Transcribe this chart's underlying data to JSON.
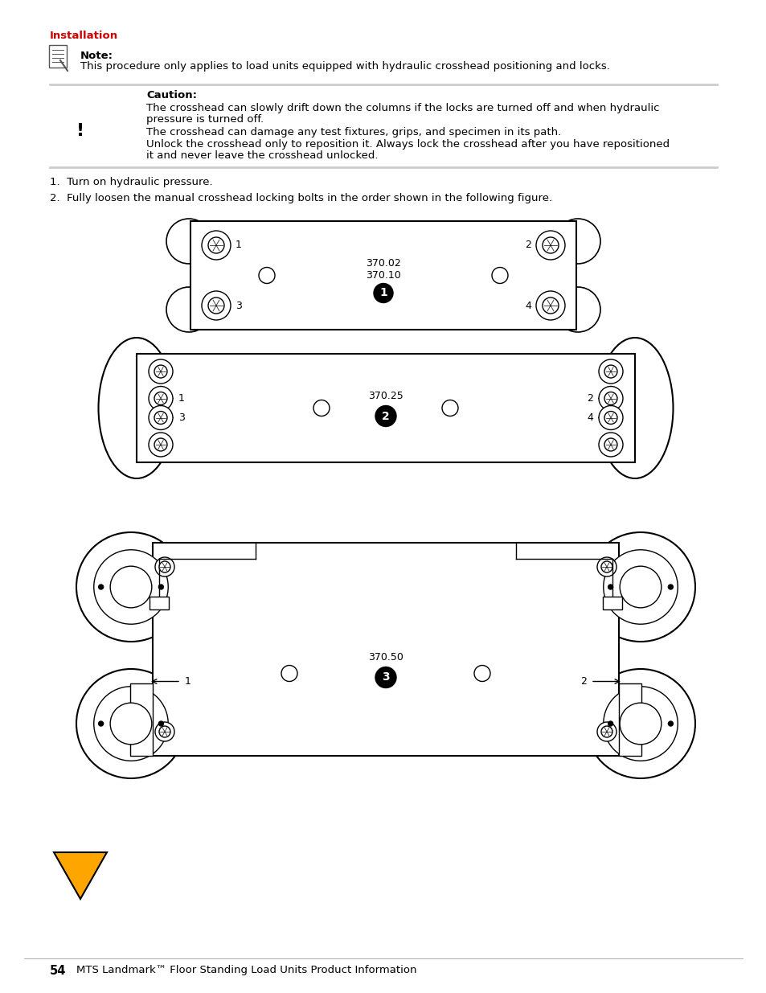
{
  "page_bg": "#ffffff",
  "header_text": "Installation",
  "header_color": "#cc0000",
  "note_bold": "Note:",
  "note_text": "This procedure only applies to load units equipped with hydraulic crosshead positioning and locks.",
  "caution_bold": "Caution:",
  "caution_line1": "The crosshead can slowly drift down the columns if the locks are turned off and when hydraulic",
  "caution_line2": "pressure is turned off.",
  "caution_line3": "The crosshead can damage any test fixtures, grips, and specimen in its path.",
  "caution_line4": "Unlock the crosshead only to reposition it. Always lock the crosshead after you have repositioned",
  "caution_line5": "it and never leave the crosshead unlocked.",
  "step1": "1.  Turn on hydraulic pressure.",
  "step2": "2.  Fully loosen the manual crosshead locking bolts in the order shown in the following figure.",
  "footer_num": "54",
  "footer_text": "MTS Landmark™ Floor Standing Load Units Product Information",
  "divider_color": "#cccccc",
  "text_color": "#000000",
  "fig1_label": "370.02\n370.10",
  "fig2_label": "370.25",
  "fig3_label": "370.50"
}
